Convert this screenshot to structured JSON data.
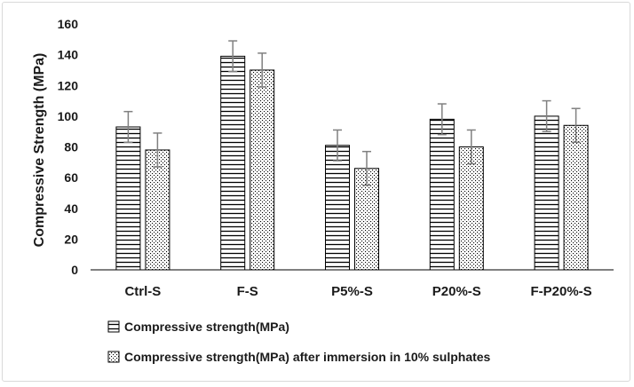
{
  "chart_data": {
    "type": "bar",
    "title": "",
    "xlabel": "",
    "ylabel": "Compressive Strength (MPa)",
    "ylim": [
      0,
      160
    ],
    "yticks": [
      0,
      20,
      40,
      60,
      80,
      100,
      120,
      140,
      160
    ],
    "ytick_labels": [
      "0",
      "20",
      "40",
      "60",
      "80",
      "100",
      "120",
      "140",
      "160"
    ],
    "grid": false,
    "legend_position": "bottom",
    "categories": [
      "Ctrl-S",
      "F-S",
      "P5%-S",
      "P20%-S",
      "F-P20%-S"
    ],
    "series": [
      {
        "name": "Compressive strength(MPa)",
        "pattern": "horizontal-lines",
        "values": [
          93,
          139,
          81,
          98,
          100
        ],
        "error": [
          10,
          10,
          10,
          10,
          10
        ]
      },
      {
        "name": "Compressive strength(MPa) after immersion in 10% sulphates",
        "pattern": "dots",
        "values": [
          78,
          130,
          66,
          80,
          94
        ],
        "error": [
          11,
          11,
          11,
          11,
          11
        ]
      }
    ],
    "colors": {
      "bar_stroke": "#000000",
      "error_bar": "#808080",
      "axis": "#000000"
    }
  }
}
